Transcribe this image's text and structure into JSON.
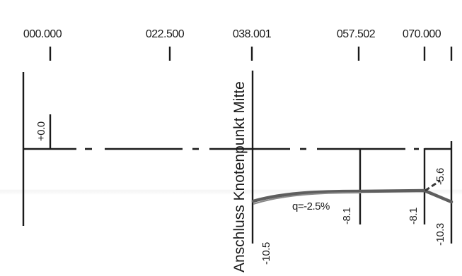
{
  "stations": [
    "000.000",
    "022.500",
    "038.001",
    "057.502",
    "070.000"
  ],
  "vertical_label": "Anschluss Knotenpunkt Mitte",
  "values": {
    "start_height": "+0.0",
    "v1": "-10.5",
    "v2": "-8.1",
    "v3": "-8.1",
    "v4": "-10.3",
    "v5": "-5.6"
  },
  "slope": "q=-2.5%",
  "colors": {
    "ink": "#1a1a1a",
    "curve": "#5e5e5e"
  }
}
